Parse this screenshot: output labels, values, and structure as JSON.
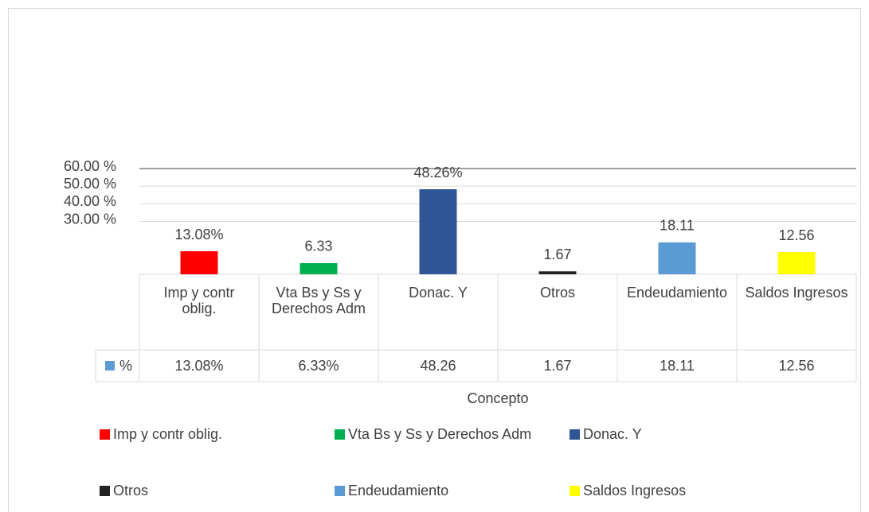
{
  "chart_data": {
    "type": "bar",
    "x_label": "Concepto",
    "categories": [
      "Imp y contr oblig.",
      "Vta Bs y Ss y Derechos Adm",
      "Donac. Y",
      "Otros",
      "Endeudamiento",
      "Saldos Ingresos"
    ],
    "values": [
      13.08,
      6.33,
      48.26,
      1.67,
      18.11,
      12.56
    ],
    "value_labels": [
      "13.08%",
      "6.33",
      "48.26%",
      "1.67",
      "18.11",
      "12.56"
    ],
    "colors": [
      "#ff0000",
      "#00b050",
      "#2f5597",
      "#222222",
      "#5b9bd5",
      "#ffff00"
    ],
    "table_series_name": "%",
    "table_color": "#5b9bd5",
    "table_labels": [
      "13.08%",
      "6.33%",
      "48.26",
      "1.67",
      "18.11",
      "12.56"
    ],
    "ylim": [
      0,
      60
    ],
    "yticks": [
      {
        "value": 30,
        "label": "30.00 %"
      },
      {
        "value": 40,
        "label": "40.00 %"
      },
      {
        "value": 50,
        "label": "50.00 %"
      },
      {
        "value": 60,
        "label": "60.00 %"
      }
    ],
    "grid": true
  }
}
